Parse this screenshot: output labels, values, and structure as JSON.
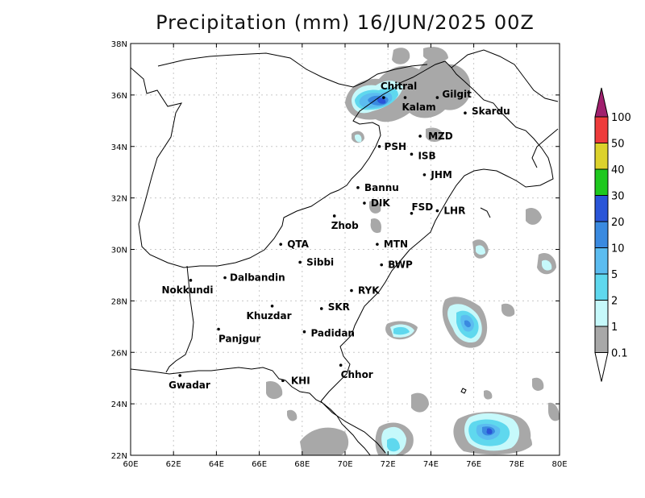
{
  "title": "Precipitation (mm) 16/JUN/2025 00Z",
  "map": {
    "lon_range": [
      60,
      80
    ],
    "lat_range": [
      22,
      38
    ],
    "lon_ticks": [
      "60E",
      "62E",
      "64E",
      "66E",
      "68E",
      "70E",
      "72E",
      "74E",
      "76E",
      "78E",
      "80E"
    ],
    "lat_ticks": [
      "22N",
      "24N",
      "26N",
      "28N",
      "30N",
      "32N",
      "34N",
      "36N",
      "38N"
    ],
    "grid": true
  },
  "cities": [
    {
      "name": "Chitral",
      "lon": 71.8,
      "lat": 35.9
    },
    {
      "name": "Kalam",
      "lon": 72.8,
      "lat": 35.9
    },
    {
      "name": "Gilgit",
      "lon": 74.3,
      "lat": 35.9
    },
    {
      "name": "Skardu",
      "lon": 75.6,
      "lat": 35.3
    },
    {
      "name": "MZD",
      "lon": 73.5,
      "lat": 34.4
    },
    {
      "name": "PSH",
      "lon": 71.6,
      "lat": 34.0
    },
    {
      "name": "ISB",
      "lon": 73.1,
      "lat": 33.7
    },
    {
      "name": "JHM",
      "lon": 73.7,
      "lat": 32.9
    },
    {
      "name": "Bannu",
      "lon": 70.6,
      "lat": 32.4
    },
    {
      "name": "DIK",
      "lon": 70.9,
      "lat": 31.8
    },
    {
      "name": "FSD",
      "lon": 73.1,
      "lat": 31.4
    },
    {
      "name": "LHR",
      "lon": 74.3,
      "lat": 31.5
    },
    {
      "name": "Zhob",
      "lon": 69.5,
      "lat": 31.3
    },
    {
      "name": "QTA",
      "lon": 67.0,
      "lat": 30.2
    },
    {
      "name": "MTN",
      "lon": 71.5,
      "lat": 30.2
    },
    {
      "name": "Sibbi",
      "lon": 67.9,
      "lat": 29.5
    },
    {
      "name": "BWP",
      "lon": 71.7,
      "lat": 29.4
    },
    {
      "name": "Dalbandin",
      "lon": 64.4,
      "lat": 28.9
    },
    {
      "name": "Nokkundi",
      "lon": 62.8,
      "lat": 28.8
    },
    {
      "name": "RYK",
      "lon": 70.3,
      "lat": 28.4
    },
    {
      "name": "Khuzdar",
      "lon": 66.6,
      "lat": 27.8
    },
    {
      "name": "SKR",
      "lon": 68.9,
      "lat": 27.7
    },
    {
      "name": "Panjgur",
      "lon": 64.1,
      "lat": 26.9
    },
    {
      "name": "Padidan",
      "lon": 68.1,
      "lat": 26.8
    },
    {
      "name": "Chhor",
      "lon": 69.8,
      "lat": 25.5
    },
    {
      "name": "KHI",
      "lon": 67.1,
      "lat": 24.9
    },
    {
      "name": "Gwadar",
      "lon": 62.3,
      "lat": 25.1
    }
  ],
  "colorbar": {
    "levels": [
      "100",
      "50",
      "40",
      "30",
      "20",
      "10",
      "5",
      "2",
      "1",
      "0.1"
    ],
    "colors": [
      "#a0206e",
      "#ee3b3b",
      "#dcd22c",
      "#1ec81e",
      "#2a55d8",
      "#3a8ae0",
      "#5bbcf0",
      "#5fd8ee",
      "#c6f9fb",
      "#a8a8a8"
    ]
  },
  "precip_areas": [
    {
      "lon": 72.2,
      "lat": 35.7,
      "category": "20"
    },
    {
      "lon": 72.0,
      "lat": 35.6,
      "category": "10"
    },
    {
      "lon": 74.5,
      "lat": 35.7,
      "category": "1"
    },
    {
      "lon": 75.8,
      "lat": 27.2,
      "category": "10"
    },
    {
      "lon": 72.5,
      "lat": 26.8,
      "category": "5"
    },
    {
      "lon": 76.3,
      "lat": 22.6,
      "category": "20"
    },
    {
      "lon": 72.5,
      "lat": 22.3,
      "category": "5"
    }
  ]
}
